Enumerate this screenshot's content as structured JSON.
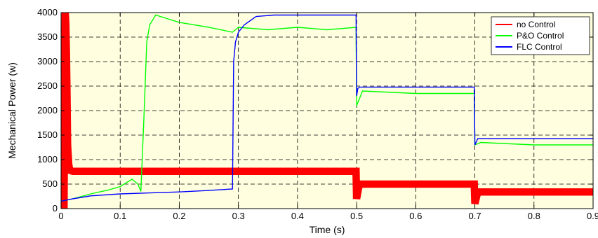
{
  "chart_data": {
    "type": "line",
    "xlabel": "Time (s)",
    "ylabel": "Mechanical Power (w)",
    "xlim": [
      0,
      0.9
    ],
    "ylim": [
      0,
      4000
    ],
    "xticks": [
      0,
      0.1,
      0.2,
      0.3,
      0.4,
      0.5,
      0.6,
      0.7,
      0.8,
      0.9
    ],
    "xtick_labels": [
      "0",
      "0.1",
      "0.2",
      "0.3",
      "0.4",
      "0.5",
      "0.6",
      "0.7",
      "0.8",
      "0.9"
    ],
    "yticks": [
      0,
      500,
      1000,
      1500,
      2000,
      2500,
      3000,
      3500,
      4000
    ],
    "ytick_labels": [
      "0",
      "500",
      "1000",
      "1500",
      "2000",
      "2500",
      "3000",
      "3500",
      "4000"
    ],
    "grid": true,
    "plot_background": "#ffffe0",
    "legend_position": "top-right",
    "series": [
      {
        "name": "no Control",
        "color": "#ff0000",
        "x": [
          0.0,
          0.005,
          0.007,
          0.008,
          0.009,
          0.01,
          0.011,
          0.013,
          0.015,
          0.02,
          0.1,
          0.2,
          0.3,
          0.4,
          0.499,
          0.5,
          0.503,
          0.505,
          0.55,
          0.6,
          0.65,
          0.699,
          0.7,
          0.703,
          0.705,
          0.8,
          0.9
        ],
        "y": [
          0,
          0,
          4000,
          3800,
          3200,
          2400,
          1300,
          900,
          780,
          760,
          760,
          760,
          760,
          760,
          760,
          200,
          400,
          500,
          500,
          500,
          500,
          500,
          100,
          250,
          340,
          340,
          340
        ],
        "band": 150
      },
      {
        "name": "P&O Control",
        "color": "#00ff00",
        "x": [
          0.0,
          0.02,
          0.05,
          0.08,
          0.1,
          0.12,
          0.13,
          0.135,
          0.14,
          0.145,
          0.15,
          0.16,
          0.2,
          0.25,
          0.29,
          0.3,
          0.35,
          0.4,
          0.45,
          0.499,
          0.5,
          0.51,
          0.6,
          0.699,
          0.7,
          0.71,
          0.8,
          0.9
        ],
        "y": [
          150,
          200,
          300,
          380,
          450,
          600,
          500,
          350,
          1800,
          3400,
          3750,
          3950,
          3800,
          3700,
          3600,
          3700,
          3650,
          3700,
          3650,
          3700,
          2100,
          2400,
          2350,
          2350,
          1300,
          1350,
          1300,
          1300
        ]
      },
      {
        "name": "FLC Control",
        "color": "#0000ff",
        "x": [
          0.0,
          0.02,
          0.05,
          0.1,
          0.15,
          0.2,
          0.25,
          0.29,
          0.292,
          0.295,
          0.3,
          0.31,
          0.33,
          0.36,
          0.4,
          0.45,
          0.499,
          0.5,
          0.502,
          0.505,
          0.6,
          0.699,
          0.7,
          0.705,
          0.8,
          0.9
        ],
        "y": [
          150,
          200,
          260,
          300,
          320,
          340,
          370,
          400,
          3000,
          3400,
          3600,
          3750,
          3920,
          3950,
          3950,
          3950,
          3950,
          2300,
          2450,
          2480,
          2480,
          2480,
          1300,
          1430,
          1430,
          1430
        ]
      }
    ]
  }
}
